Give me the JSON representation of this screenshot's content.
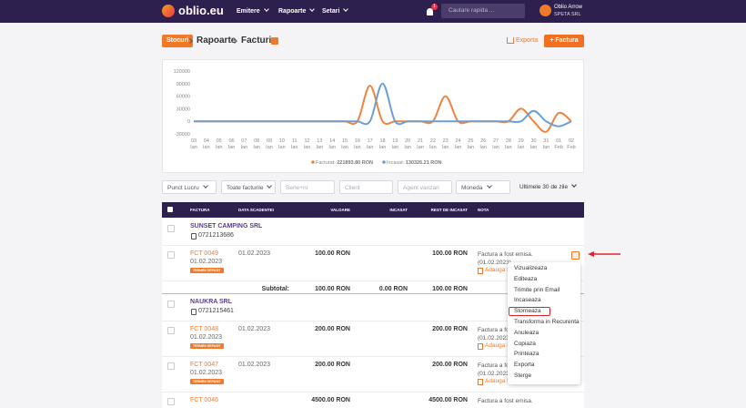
{
  "nav": {
    "brand": "oblio.eu",
    "menu": [
      "Emitere",
      "Rapoarte",
      "Setari"
    ],
    "notifications": "1",
    "search": "Cautare rapida ...",
    "user": "Oblio Arrow",
    "company": "SPETA SRL"
  },
  "breadcrumb": {
    "tag": "Stocuri",
    "items": [
      "Rapoarte",
      "Facturi"
    ]
  },
  "actions": {
    "export": "Exporta",
    "add": "+ Factura"
  },
  "chart_data": {
    "type": "line",
    "categories": [
      "03 Ian",
      "04 Ian",
      "05 Ian",
      "06 Ian",
      "07 Ian",
      "08 Ian",
      "09 Ian",
      "10 Ian",
      "11 Ian",
      "12 Ian",
      "13 Ian",
      "14 Ian",
      "15 Ian",
      "16 Ian",
      "17 Ian",
      "18 Ian",
      "19 Ian",
      "20 Ian",
      "21 Ian",
      "22 Ian",
      "23 Ian",
      "24 Ian",
      "25 Ian",
      "26 Ian",
      "27 Ian",
      "28 Ian",
      "29 Ian",
      "30 Ian",
      "31 Ian",
      "01 Feb",
      "02 Feb"
    ],
    "series": [
      {
        "name": "Facturat:",
        "total": "221893.80 RON",
        "color": "#f0843c",
        "values": [
          0,
          0,
          0,
          0,
          0,
          0,
          0,
          0,
          0,
          0,
          0,
          0,
          0,
          0,
          85000,
          0,
          0,
          0,
          0,
          0,
          60000,
          0,
          0,
          0,
          0,
          0,
          30000,
          0,
          -25000,
          20000,
          0
        ]
      },
      {
        "name": "Incasat:",
        "total": "130326.21 RON",
        "color": "#6a9fd4",
        "values": [
          0,
          0,
          0,
          0,
          0,
          0,
          0,
          0,
          0,
          0,
          0,
          0,
          0,
          0,
          0,
          90000,
          0,
          0,
          0,
          0,
          0,
          0,
          0,
          0,
          0,
          0,
          0,
          25000,
          0,
          -12000,
          0
        ]
      }
    ],
    "ylim": [
      -30000,
      120000
    ],
    "yticks": [
      -30000,
      0,
      30000,
      60000,
      90000,
      120000
    ]
  },
  "filters": [
    "Punct Lucru",
    "Toate facturile",
    "Serie+nr",
    "Client",
    "Agent vanzari",
    "Moneda",
    "Ultimele 30 de zile"
  ],
  "table": {
    "headers": [
      "FACTURA",
      "DATA SCADENTEI",
      "VALOARE",
      "INCASAT",
      "REST DE INCASAT",
      "NOTA"
    ],
    "groups": [
      {
        "client": "SUNSET CAMPING SRL",
        "phone": "0721213686",
        "rows": [
          {
            "number": "FCT 0049",
            "date": "01.02.2023",
            "badge": "TERMEN DEPASIT",
            "due": "01.02.2023",
            "value": "100.00 RON",
            "rest": "100.00 RON",
            "note": "Factura a fost emisa. (01.02.2023)",
            "add_note": "Adauga Nota"
          }
        ],
        "subtotal": {
          "label": "Subtotal:",
          "value": "100.00 RON",
          "paid": "0.00 RON",
          "rest": "100.00 RON"
        }
      },
      {
        "client": "NAUKRA SRL",
        "phone": "0721215461",
        "rows": [
          {
            "number": "FCT 0048",
            "date": "01.02.2023",
            "badge": "TERMEN DEPASIT",
            "due": "01.02.2023",
            "value": "200.00 RON",
            "rest": "200.00 RON",
            "note": "Factura a fost emisa. (01.02.2023)",
            "add_note": "Adauga Nota"
          },
          {
            "number": "FCT 0047",
            "date": "01.02.2023",
            "badge": "TERMEN DEPASIT",
            "due": "01.02.2023",
            "value": "200.00 RON",
            "rest": "200.00 RON",
            "note": "Factura a fost emisa. (01.02.2023)",
            "add_note": "Adauga Nota"
          },
          {
            "number": "FCT 0046",
            "value": "4500.00 RON",
            "rest": "4500.00 RON",
            "note": "Factura a fost emisa."
          }
        ]
      }
    ]
  },
  "menu": [
    "Vizualizeaza",
    "Editeaza",
    "Trimite prin Email",
    "Incaseaza",
    "Storneaza",
    "Transforma in Recurenta",
    "Anuleaza",
    "Copiaza",
    "Printeaza",
    "Exporta",
    "Sterge"
  ]
}
